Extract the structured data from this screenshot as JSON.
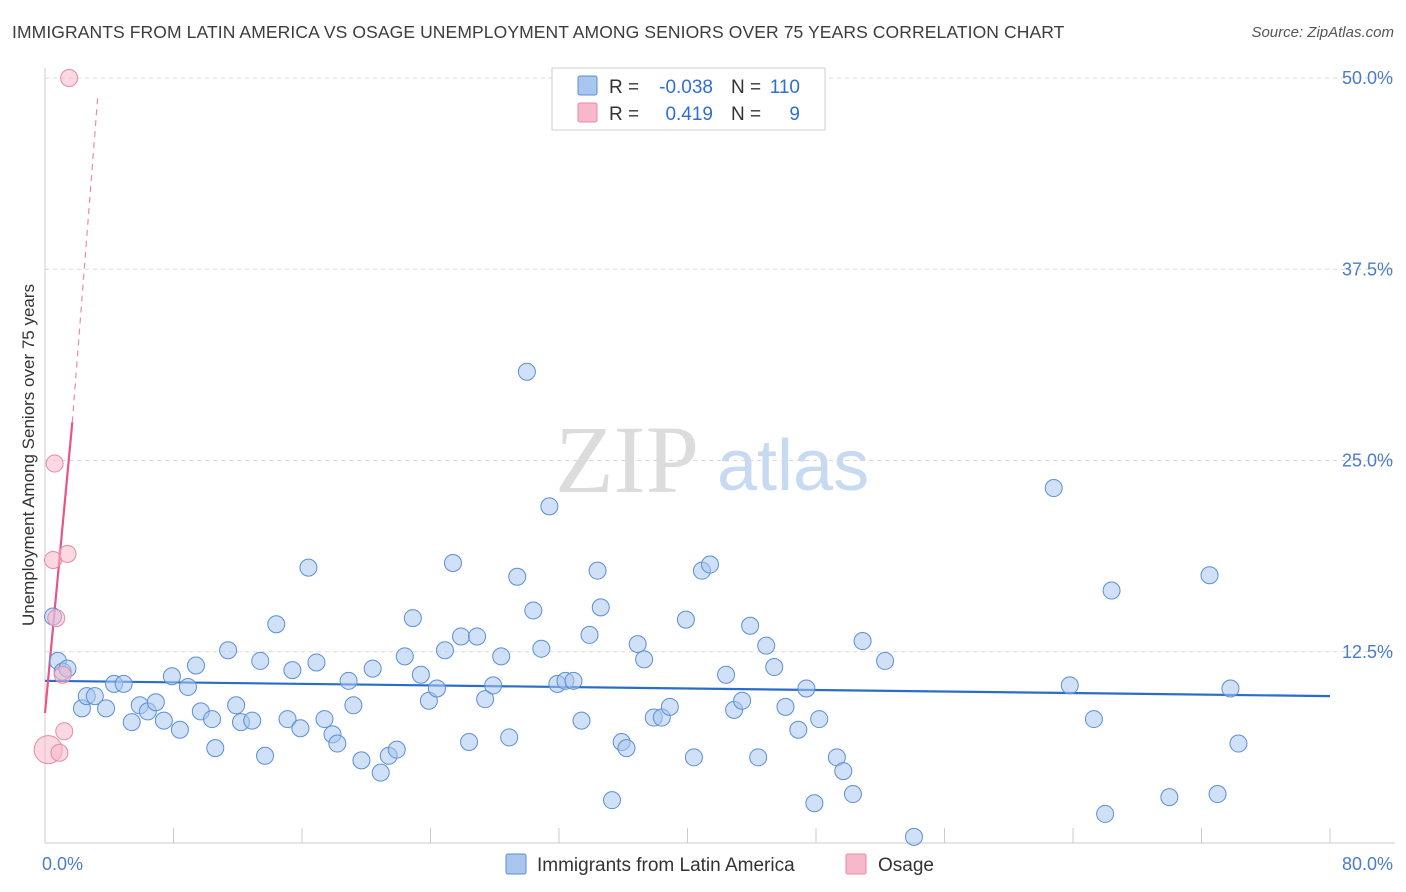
{
  "title": "IMMIGRANTS FROM LATIN AMERICA VS OSAGE UNEMPLOYMENT AMONG SENIORS OVER 75 YEARS CORRELATION CHART",
  "source": "Source: ZipAtlas.com",
  "watermark": {
    "zip": "ZIP",
    "atlas": "atlas"
  },
  "legend_stats": [
    {
      "r_label": "R = ",
      "r": "-0.038",
      "n_label": "N = ",
      "n": "110",
      "color": "#a9c6ee"
    },
    {
      "r_label": "R = ",
      "r": "0.419",
      "n_label": "N = ",
      "n": "9",
      "color": "#f7b8cb"
    }
  ],
  "chart_data": {
    "type": "scatter",
    "xlabel": "",
    "ylabel": "Unemployment Among Seniors over 75 years",
    "xlim": [
      0,
      80
    ],
    "ylim": [
      0,
      50
    ],
    "x_tick_labels": [
      "0.0%",
      "80.0%"
    ],
    "y_ticks": [
      12.5,
      25.0,
      37.5,
      50.0
    ],
    "y_tick_labels": [
      "12.5%",
      "25.0%",
      "37.5%",
      "50.0%"
    ],
    "grid": "horizontal dashed",
    "legend_position": "bottom-center",
    "series": [
      {
        "name": "Immigrants from Latin America",
        "color": "#a9c6ee",
        "stroke": "#5a8fd6",
        "trend_color": "#2a6dc9",
        "trend": {
          "x": [
            0,
            80
          ],
          "y": [
            10.6,
            9.6
          ]
        },
        "points": [
          [
            0.5,
            14.8
          ],
          [
            0.8,
            11.9
          ],
          [
            1.1,
            11.2
          ],
          [
            1.4,
            11.4
          ],
          [
            2.3,
            8.8
          ],
          [
            2.6,
            9.6
          ],
          [
            3.1,
            9.6
          ],
          [
            3.8,
            8.8
          ],
          [
            4.3,
            10.4
          ],
          [
            4.9,
            10.4
          ],
          [
            5.4,
            7.9
          ],
          [
            5.9,
            9.0
          ],
          [
            6.4,
            8.6
          ],
          [
            6.9,
            9.2
          ],
          [
            7.4,
            8.0
          ],
          [
            7.9,
            10.9
          ],
          [
            8.4,
            7.4
          ],
          [
            8.9,
            10.2
          ],
          [
            9.4,
            11.6
          ],
          [
            9.7,
            8.6
          ],
          [
            10.4,
            8.1
          ],
          [
            10.6,
            6.2
          ],
          [
            11.4,
            12.6
          ],
          [
            11.9,
            9.0
          ],
          [
            12.2,
            7.9
          ],
          [
            12.9,
            8.0
          ],
          [
            13.4,
            11.9
          ],
          [
            13.7,
            5.7
          ],
          [
            14.4,
            14.3
          ],
          [
            15.1,
            8.1
          ],
          [
            15.4,
            11.3
          ],
          [
            15.9,
            7.5
          ],
          [
            16.4,
            18.0
          ],
          [
            16.9,
            11.8
          ],
          [
            17.4,
            8.1
          ],
          [
            17.9,
            7.1
          ],
          [
            18.2,
            6.5
          ],
          [
            18.9,
            10.6
          ],
          [
            19.2,
            9.0
          ],
          [
            19.7,
            5.4
          ],
          [
            20.4,
            11.4
          ],
          [
            20.9,
            4.6
          ],
          [
            21.4,
            5.7
          ],
          [
            21.9,
            6.1
          ],
          [
            22.4,
            12.2
          ],
          [
            22.9,
            14.7
          ],
          [
            23.4,
            11.0
          ],
          [
            23.9,
            9.3
          ],
          [
            24.4,
            10.1
          ],
          [
            24.9,
            12.6
          ],
          [
            25.4,
            18.3
          ],
          [
            25.9,
            13.5
          ],
          [
            26.4,
            6.6
          ],
          [
            26.9,
            13.5
          ],
          [
            27.4,
            9.4
          ],
          [
            27.9,
            10.3
          ],
          [
            28.4,
            12.2
          ],
          [
            28.9,
            6.9
          ],
          [
            29.4,
            17.4
          ],
          [
            30.0,
            30.8
          ],
          [
            30.4,
            15.2
          ],
          [
            30.9,
            12.7
          ],
          [
            31.4,
            22.0
          ],
          [
            31.9,
            10.4
          ],
          [
            32.4,
            10.6
          ],
          [
            32.9,
            10.6
          ],
          [
            33.4,
            8.0
          ],
          [
            33.9,
            13.6
          ],
          [
            34.4,
            17.8
          ],
          [
            34.6,
            15.4
          ],
          [
            35.3,
            2.8
          ],
          [
            35.9,
            6.6
          ],
          [
            36.2,
            6.2
          ],
          [
            36.9,
            13.0
          ],
          [
            37.3,
            12.0
          ],
          [
            37.9,
            8.2
          ],
          [
            38.4,
            8.2
          ],
          [
            38.9,
            8.9
          ],
          [
            39.9,
            14.6
          ],
          [
            40.4,
            5.6
          ],
          [
            40.9,
            17.8
          ],
          [
            41.4,
            18.2
          ],
          [
            42.4,
            11.0
          ],
          [
            42.9,
            8.7
          ],
          [
            43.4,
            9.3
          ],
          [
            43.9,
            14.2
          ],
          [
            44.4,
            5.6
          ],
          [
            44.9,
            12.9
          ],
          [
            45.4,
            11.5
          ],
          [
            46.1,
            8.9
          ],
          [
            46.9,
            7.4
          ],
          [
            47.4,
            10.1
          ],
          [
            47.9,
            2.6
          ],
          [
            48.2,
            8.1
          ],
          [
            49.3,
            5.6
          ],
          [
            49.7,
            4.7
          ],
          [
            50.3,
            3.2
          ],
          [
            50.9,
            13.2
          ],
          [
            52.3,
            11.9
          ],
          [
            54.1,
            0.4
          ],
          [
            62.8,
            23.2
          ],
          [
            63.8,
            10.3
          ],
          [
            65.3,
            8.1
          ],
          [
            66.0,
            1.9
          ],
          [
            66.4,
            16.5
          ],
          [
            70.0,
            3.0
          ],
          [
            72.5,
            17.5
          ],
          [
            73.0,
            3.2
          ],
          [
            73.8,
            10.1
          ],
          [
            74.3,
            6.5
          ]
        ]
      },
      {
        "name": "Osage",
        "color": "#f7b8cb",
        "stroke": "#e889a6",
        "trend_color": "#e8548a",
        "trend": {
          "x": [
            0,
            1.7
          ],
          "y": [
            8.5,
            27.5
          ]
        },
        "trend_ext": {
          "x": [
            1.7,
            3.3
          ],
          "y": [
            27.5,
            49.0
          ]
        },
        "points": [
          [
            0.2,
            6.1
          ],
          [
            0.5,
            18.5
          ],
          [
            0.6,
            24.8
          ],
          [
            0.7,
            14.7
          ],
          [
            0.9,
            5.9
          ],
          [
            1.1,
            11.0
          ],
          [
            1.2,
            7.3
          ],
          [
            1.4,
            18.9
          ],
          [
            1.5,
            50.0
          ]
        ]
      }
    ]
  },
  "bottom_legend": [
    {
      "label": "Immigrants from Latin America",
      "color": "#a9c6ee",
      "stroke": "#5a8fd6"
    },
    {
      "label": "Osage",
      "color": "#f7b8cb",
      "stroke": "#e889a6"
    }
  ]
}
